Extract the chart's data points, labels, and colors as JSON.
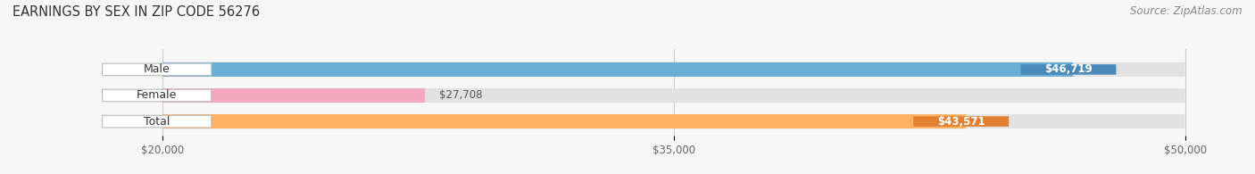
{
  "title": "EARNINGS BY SEX IN ZIP CODE 56276",
  "source": "Source: ZipAtlas.com",
  "categories": [
    "Male",
    "Female",
    "Total"
  ],
  "values": [
    46719,
    27708,
    43571
  ],
  "bar_colors": [
    "#6aaed6",
    "#f4a8c0",
    "#fcb163"
  ],
  "value_labels": [
    "$46,719",
    "$27,708",
    "$43,571"
  ],
  "xmin": 20000,
  "xmax": 50000,
  "xticks": [
    20000,
    35000,
    50000
  ],
  "xticklabels": [
    "$20,000",
    "$35,000",
    "$50,000"
  ],
  "background_color": "#f7f7f7",
  "bar_bg_color": "#e2e2e2",
  "title_fontsize": 10.5,
  "source_fontsize": 8.5,
  "tick_fontsize": 8.5,
  "label_fontsize": 9,
  "value_fontsize": 8.5,
  "value_pill_colors": [
    "#5a9ec6",
    "#5a9ec6",
    "#f0a050"
  ],
  "bar_height": 0.55,
  "bar_gap": 0.25
}
